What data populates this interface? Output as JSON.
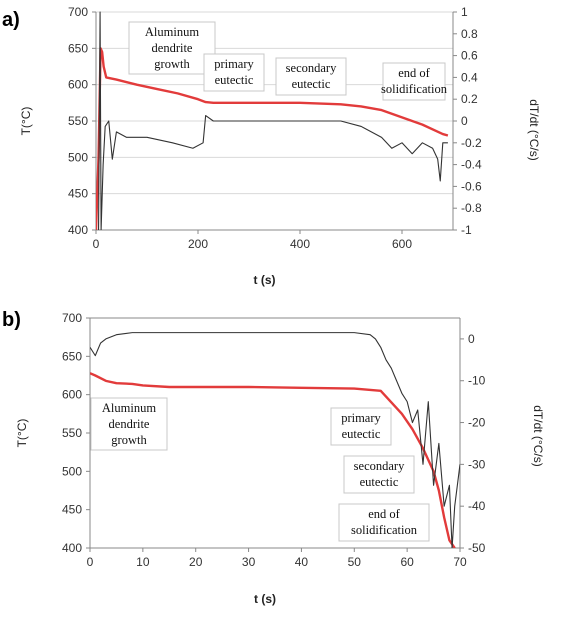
{
  "colors": {
    "temperature": "#e23b3b",
    "derivative": "#333333",
    "grid": "#d9d9d9",
    "axis": "#888888"
  },
  "chart_data": [
    {
      "panel_label": "a)",
      "type": "line",
      "xlabel": "t (s)",
      "ylabel": "T(°C)",
      "y2label": "dT/dt (°C/s)",
      "xlim": [
        0,
        700
      ],
      "ylim": [
        400,
        700
      ],
      "y2lim": [
        -1,
        1
      ],
      "x_ticks": [
        "0",
        "200",
        "400",
        "600"
      ],
      "y_ticks": [
        "400",
        "450",
        "500",
        "550",
        "600",
        "650",
        "700"
      ],
      "y2_ticks": [
        "-1",
        "-0.8",
        "-0.6",
        "-0.4",
        "-0.2",
        "0",
        "0.2",
        "0.4",
        "0.6",
        "0.8",
        "1"
      ],
      "grid": "horizontal",
      "series": [
        {
          "role": "temperature",
          "x": [
            0,
            5,
            9,
            12,
            15,
            20,
            40,
            80,
            120,
            160,
            200,
            215,
            230,
            300,
            400,
            480,
            520,
            560,
            600,
            640,
            680,
            690
          ],
          "y": [
            400,
            500,
            650,
            645,
            625,
            610,
            607,
            600,
            594,
            588,
            580,
            576,
            575,
            575,
            575,
            573,
            570,
            565,
            555,
            545,
            532,
            530
          ]
        },
        {
          "role": "derivative",
          "x": [
            5,
            8,
            10,
            14,
            18,
            25,
            32,
            40,
            60,
            100,
            150,
            190,
            210,
            215,
            230,
            300,
            400,
            480,
            520,
            560,
            580,
            600,
            620,
            640,
            660,
            670,
            675,
            680,
            690
          ],
          "y": [
            -1,
            1,
            -1,
            -0.4,
            -0.05,
            0.0,
            -0.35,
            -0.1,
            -0.15,
            -0.15,
            -0.2,
            -0.25,
            -0.2,
            0.05,
            0.0,
            0.0,
            0.0,
            0.0,
            -0.05,
            -0.15,
            -0.25,
            -0.2,
            -0.3,
            -0.2,
            -0.25,
            -0.35,
            -0.55,
            -0.2,
            -0.2
          ]
        }
      ],
      "annotations": [
        {
          "lines": [
            "Aluminum",
            "dendrite",
            "growth"
          ]
        },
        {
          "lines": [
            "primary",
            "eutectic"
          ]
        },
        {
          "lines": [
            "secondary",
            "eutectic"
          ]
        },
        {
          "lines": [
            "end of",
            "solidification"
          ]
        }
      ]
    },
    {
      "panel_label": "b)",
      "type": "line",
      "xlabel": "t (s)",
      "ylabel": "T(°C)",
      "y2label": "dT/dt (°C/s)",
      "xlim": [
        0,
        70
      ],
      "ylim": [
        400,
        700
      ],
      "y2lim": [
        -50,
        5
      ],
      "x_ticks": [
        "0",
        "10",
        "20",
        "30",
        "40",
        "50",
        "60",
        "70"
      ],
      "y_ticks": [
        "400",
        "450",
        "500",
        "550",
        "600",
        "650",
        "700"
      ],
      "y2_ticks": [
        "-50",
        "-40",
        "-30",
        "-20",
        "-10",
        "0"
      ],
      "grid": "none",
      "series": [
        {
          "role": "temperature",
          "x": [
            0,
            1,
            3,
            5,
            8,
            10,
            15,
            20,
            30,
            40,
            50,
            55,
            57,
            59,
            61,
            63,
            65,
            66,
            67,
            68,
            69
          ],
          "y": [
            628,
            625,
            618,
            615,
            614,
            612,
            610,
            610,
            610,
            609,
            608,
            605,
            590,
            575,
            555,
            530,
            500,
            475,
            440,
            410,
            400
          ]
        },
        {
          "role": "derivative",
          "x": [
            0,
            1,
            2,
            3,
            5,
            8,
            12,
            20,
            30,
            40,
            50,
            53,
            54,
            55,
            56,
            57,
            58,
            59,
            60,
            61,
            62,
            63,
            64,
            65,
            66,
            67,
            68,
            68.5,
            69,
            70
          ],
          "y": [
            -2,
            -4,
            -1,
            0,
            1,
            1.5,
            1.5,
            1.5,
            1.5,
            1.5,
            1.5,
            1,
            0,
            -2,
            -5,
            -7,
            -10,
            -13,
            -15,
            -20,
            -17,
            -30,
            -15,
            -35,
            -25,
            -40,
            -35,
            -50,
            -40,
            -30
          ]
        }
      ],
      "annotations": [
        {
          "lines": [
            "Aluminum",
            "dendrite",
            "growth"
          ]
        },
        {
          "lines": [
            "primary",
            "eutectic"
          ]
        },
        {
          "lines": [
            "secondary",
            "eutectic"
          ]
        },
        {
          "lines": [
            "end of",
            "solidification"
          ]
        }
      ]
    }
  ]
}
